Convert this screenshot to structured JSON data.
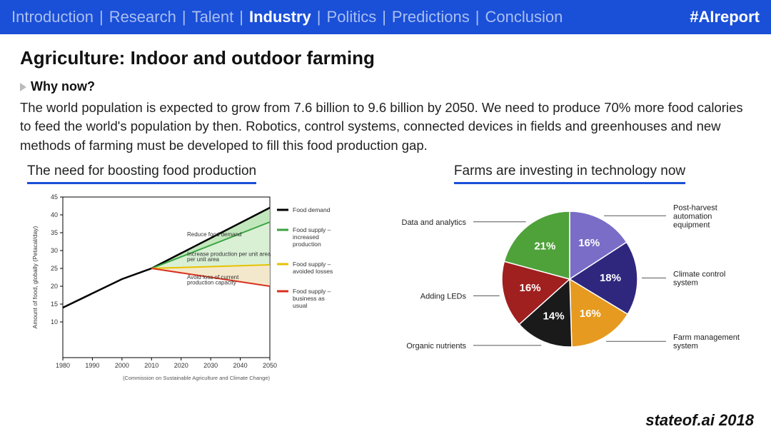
{
  "nav": {
    "items": [
      "Introduction",
      "Research",
      "Talent",
      "Industry",
      "Politics",
      "Predictions",
      "Conclusion"
    ],
    "active_index": 3,
    "separator": "|",
    "hashtag": "#AIreport",
    "bg_color": "#1a4fd8",
    "inactive_color": "#a9bff0",
    "active_color": "#ffffff"
  },
  "title": "Agriculture: Indoor and outdoor farming",
  "subtitle": "Why now?",
  "body": "The world population is expected to grow from 7.6 billion to 9.6 billion by 2050. We need to produce 70% more food calories to feed the world's population by then. Robotics, control systems, connected devices in fields and greenhouses and new methods of farming must be developed to fill this food production gap.",
  "left_chart": {
    "title": "The need for boosting food production",
    "type": "line-area",
    "xlabel_years": [
      "1980",
      "1990",
      "2000",
      "2010",
      "2020",
      "2030",
      "2040",
      "2050"
    ],
    "ylabel": "Amount of food, globally (Petacal/day)",
    "ylim": [
      0,
      45
    ],
    "yticks": [
      10,
      15,
      20,
      25,
      30,
      35,
      40,
      45
    ],
    "source": "(Commission on Sustainable Agriculture and Climate Change)",
    "series": {
      "demand": {
        "label": "Food demand",
        "color": "#000000",
        "points": [
          [
            1980,
            14
          ],
          [
            2000,
            22
          ],
          [
            2010,
            25
          ],
          [
            2050,
            42
          ]
        ]
      },
      "increased": {
        "label": "Food supply – increased production",
        "color": "#3aa341",
        "points": [
          [
            2010,
            25
          ],
          [
            2050,
            38
          ]
        ]
      },
      "avoided": {
        "label": "Food supply – avoided losses",
        "color": "#e6c200",
        "points": [
          [
            2010,
            25
          ],
          [
            2050,
            26
          ]
        ]
      },
      "usual": {
        "label": "Food supply – business as usual",
        "color": "#d8301c",
        "points": [
          [
            2010,
            25
          ],
          [
            2050,
            20
          ]
        ]
      }
    },
    "annotations": {
      "reduce": "Reduce food demand",
      "increase": "Increase production per unit area",
      "avoid": "Avoid loss of current production capacity"
    },
    "fill_green": "#b9e3b2",
    "fill_tan": "#f3e6c6",
    "grid_color": "#999999",
    "axis_color": "#000000"
  },
  "right_chart": {
    "title": "Farms are investing in technology now",
    "type": "pie",
    "slices": [
      {
        "label": "Post-harvest automation equipment",
        "value": 16,
        "color": "#7a6dc7",
        "label_side": "right"
      },
      {
        "label": "Climate control system",
        "value": 18,
        "color": "#2f277e",
        "label_side": "right"
      },
      {
        "label": "Farm management system",
        "value": 16,
        "color": "#e69a1f",
        "label_side": "right"
      },
      {
        "label": "Organic nutrients",
        "value": 14,
        "color": "#1a1a1a",
        "label_side": "left"
      },
      {
        "label": "Adding LEDs",
        "value": 16,
        "color": "#a01f1f",
        "label_side": "left"
      },
      {
        "label": "Data and analytics",
        "value": 21,
        "color": "#4fa23a",
        "label_side": "left"
      }
    ],
    "pct_text_color": "#ffffff",
    "label_font_size": 11
  },
  "footer": "stateof.ai 2018"
}
